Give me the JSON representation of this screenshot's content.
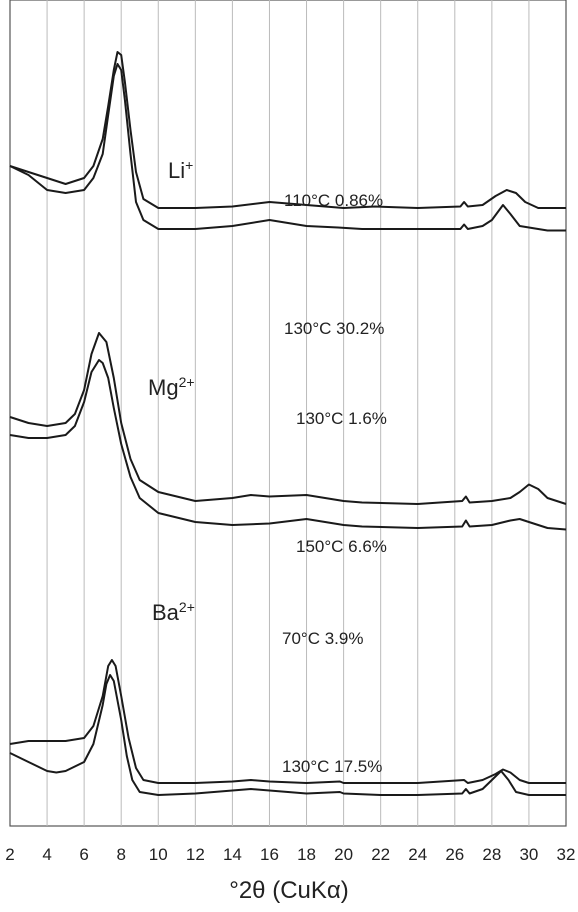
{
  "chart_data": {
    "type": "line",
    "title": "",
    "xlabel": "°2θ (CuKα)",
    "ylabel": "",
    "xlim": [
      2,
      32
    ],
    "x_ticks": [
      2,
      4,
      6,
      8,
      10,
      12,
      14,
      16,
      18,
      20,
      22,
      24,
      26,
      28,
      30,
      32
    ],
    "grid_x": true,
    "y_axis_visible": false,
    "groups": [
      {
        "ion": "Li",
        "charge": "+",
        "series": [
          {
            "name": "110°C 0.86%",
            "peaks": [
              7.9,
              28.8
            ],
            "x": [
              2,
              3,
              4,
              5,
              6,
              6.5,
              7,
              7.3,
              7.6,
              7.8,
              8,
              8.2,
              8.5,
              8.8,
              9.2,
              10,
              12,
              14,
              16,
              17,
              18,
              20,
              21.7,
              24,
              26.3,
              26.5,
              26.7,
              27.5,
              28.2,
              28.8,
              29.3,
              29.8,
              30.5,
              31,
              32
            ],
            "y": [
              0.58,
              0.56,
              0.54,
              0.52,
              0.54,
              0.58,
              0.67,
              0.78,
              0.9,
              0.96,
              0.95,
              0.86,
              0.7,
              0.56,
              0.47,
              0.44,
              0.44,
              0.445,
              0.46,
              0.455,
              0.45,
              0.44,
              0.445,
              0.44,
              0.445,
              0.46,
              0.445,
              0.45,
              0.48,
              0.5,
              0.49,
              0.46,
              0.44,
              0.44,
              0.44
            ]
          },
          {
            "name": "130°C 30.2%",
            "peaks": [
              7.8,
              28.6
            ],
            "x": [
              2,
              3,
              4,
              5,
              6,
              6.5,
              7,
              7.3,
              7.6,
              7.8,
              8,
              8.2,
              8.5,
              8.8,
              9.2,
              10,
              12,
              14,
              16,
              17,
              18,
              19.7,
              21,
              24,
              26.3,
              26.5,
              26.7,
              27.5,
              28,
              28.6,
              29,
              29.5,
              30.5,
              31,
              32
            ],
            "y": [
              0.58,
              0.55,
              0.5,
              0.49,
              0.5,
              0.54,
              0.62,
              0.75,
              0.88,
              0.92,
              0.9,
              0.8,
              0.62,
              0.46,
              0.4,
              0.37,
              0.37,
              0.38,
              0.4,
              0.39,
              0.38,
              0.375,
              0.37,
              0.37,
              0.37,
              0.385,
              0.37,
              0.38,
              0.4,
              0.45,
              0.42,
              0.38,
              0.37,
              0.365,
              0.365
            ]
          }
        ]
      },
      {
        "ion": "Mg",
        "charge": "2+",
        "series": [
          {
            "name": "130°C 1.6%",
            "peaks": [
              6.8,
              30.0
            ],
            "x": [
              2,
              3,
              4,
              5,
              5.5,
              6,
              6.4,
              6.8,
              7.2,
              7.6,
              8,
              8.5,
              9,
              10,
              12,
              14,
              15,
              16,
              18,
              20,
              21,
              24,
              26.4,
              26.6,
              26.8,
              28,
              29,
              29.5,
              30,
              30.5,
              31,
              32
            ],
            "y": [
              0.47,
              0.45,
              0.44,
              0.45,
              0.48,
              0.56,
              0.68,
              0.75,
              0.72,
              0.6,
              0.45,
              0.33,
              0.26,
              0.22,
              0.19,
              0.2,
              0.21,
              0.205,
              0.21,
              0.19,
              0.185,
              0.18,
              0.19,
              0.205,
              0.185,
              0.19,
              0.2,
              0.22,
              0.245,
              0.23,
              0.2,
              0.18
            ]
          },
          {
            "name": "150°C 6.6%",
            "peaks": [
              7.0,
              29.5
            ],
            "x": [
              2,
              3,
              4,
              5,
              5.5,
              6,
              6.4,
              6.8,
              7,
              7.3,
              7.6,
              8,
              8.5,
              9,
              10,
              12,
              14,
              16,
              18,
              19,
              20,
              21,
              24,
              26.4,
              26.6,
              26.8,
              28,
              29,
              29.5,
              30,
              31,
              32
            ],
            "y": [
              0.41,
              0.4,
              0.4,
              0.41,
              0.44,
              0.52,
              0.62,
              0.66,
              0.65,
              0.6,
              0.5,
              0.38,
              0.27,
              0.2,
              0.15,
              0.12,
              0.11,
              0.115,
              0.13,
              0.12,
              0.11,
              0.105,
              0.1,
              0.105,
              0.125,
              0.105,
              0.11,
              0.125,
              0.13,
              0.12,
              0.1,
              0.095
            ]
          }
        ]
      },
      {
        "ion": "Ba",
        "charge": "2+",
        "series": [
          {
            "name": "70°C 3.9%",
            "peaks": [
              7.5,
              28.6
            ],
            "x": [
              2,
              3,
              4,
              5,
              6,
              6.5,
              7,
              7.3,
              7.5,
              7.7,
              8,
              8.4,
              8.8,
              9.2,
              10,
              12,
              14,
              15,
              16,
              18,
              19.8,
              20,
              22,
              24,
              26.5,
              26.7,
              27.5,
              28.2,
              28.6,
              29,
              29.5,
              30,
              31,
              32
            ],
            "y": [
              0.32,
              0.33,
              0.33,
              0.33,
              0.34,
              0.38,
              0.48,
              0.58,
              0.6,
              0.58,
              0.48,
              0.34,
              0.24,
              0.2,
              0.19,
              0.19,
              0.195,
              0.2,
              0.195,
              0.19,
              0.195,
              0.19,
              0.19,
              0.19,
              0.2,
              0.19,
              0.2,
              0.22,
              0.235,
              0.225,
              0.2,
              0.19,
              0.19,
              0.19
            ]
          },
          {
            "name": "130°C 17.5%",
            "peaks": [
              7.4,
              28.5
            ],
            "x": [
              2,
              3,
              4,
              4.5,
              5,
              6,
              6.5,
              7,
              7.2,
              7.4,
              7.6,
              8,
              8.3,
              8.6,
              9,
              10,
              12,
              14,
              15,
              16,
              18,
              19.8,
              20,
              22,
              24,
              26.4,
              26.6,
              26.8,
              27.5,
              28,
              28.5,
              28.9,
              29.3,
              30,
              31,
              32
            ],
            "y": [
              0.29,
              0.26,
              0.23,
              0.225,
              0.23,
              0.26,
              0.32,
              0.45,
              0.52,
              0.55,
              0.53,
              0.4,
              0.28,
              0.2,
              0.16,
              0.15,
              0.155,
              0.165,
              0.17,
              0.165,
              0.155,
              0.16,
              0.155,
              0.15,
              0.15,
              0.155,
              0.17,
              0.155,
              0.17,
              0.2,
              0.23,
              0.2,
              0.16,
              0.15,
              0.15,
              0.15
            ]
          }
        ]
      }
    ]
  }
}
